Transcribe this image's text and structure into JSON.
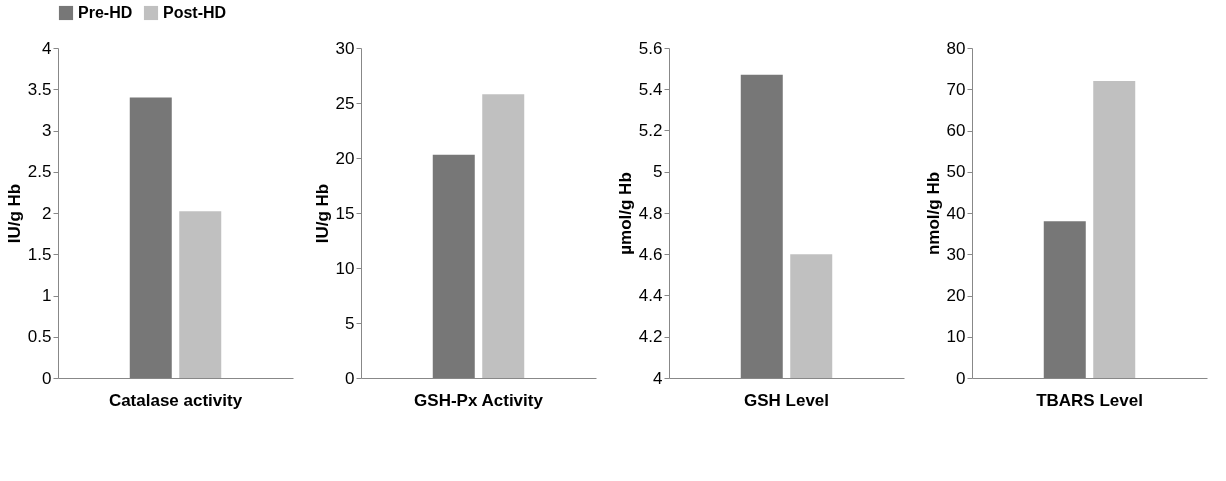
{
  "chart_data": [
    {
      "type": "bar",
      "categories": [
        "Catalase activity"
      ],
      "ylabel": "IU/g Hb",
      "ylim": [
        0,
        4
      ],
      "yticks": [
        0,
        0.5,
        1,
        1.5,
        2,
        2.5,
        3,
        3.5,
        4
      ],
      "grid": false,
      "legend": "top",
      "series": [
        {
          "name": "Pre-HD",
          "color": "#777777",
          "values": [
            3.4
          ]
        },
        {
          "name": "Post-HD",
          "color": "#c0c0c0",
          "values": [
            2.02
          ]
        }
      ]
    },
    {
      "type": "bar",
      "categories": [
        "GSH-Px Activity"
      ],
      "ylabel": "IU/g Hb",
      "ylim": [
        0,
        30
      ],
      "yticks": [
        0,
        5,
        10,
        15,
        20,
        25,
        30
      ],
      "grid": false,
      "series": [
        {
          "name": "Pre-HD",
          "color": "#777777",
          "values": [
            20.3
          ]
        },
        {
          "name": "Post-HD",
          "color": "#c0c0c0",
          "values": [
            25.8
          ]
        }
      ]
    },
    {
      "type": "bar",
      "categories": [
        "GSH Level"
      ],
      "ylabel": "µmol/g Hb",
      "ylim": [
        4,
        5.6
      ],
      "yticks": [
        4,
        4.2,
        4.4,
        4.6,
        4.8,
        5,
        5.2,
        5.4,
        5.6
      ],
      "grid": false,
      "series": [
        {
          "name": "Pre-HD",
          "color": "#777777",
          "values": [
            5.47
          ]
        },
        {
          "name": "Post-HD",
          "color": "#c0c0c0",
          "values": [
            4.6
          ]
        }
      ]
    },
    {
      "type": "bar",
      "categories": [
        "TBARS Level"
      ],
      "ylabel": "nmol/g Hb",
      "ylim": [
        0,
        80
      ],
      "yticks": [
        0,
        10,
        20,
        30,
        40,
        50,
        60,
        70,
        80
      ],
      "grid": false,
      "series": [
        {
          "name": "Pre-HD",
          "color": "#777777",
          "values": [
            38
          ]
        },
        {
          "name": "Post-HD",
          "color": "#c0c0c0",
          "values": [
            72
          ]
        }
      ]
    }
  ]
}
